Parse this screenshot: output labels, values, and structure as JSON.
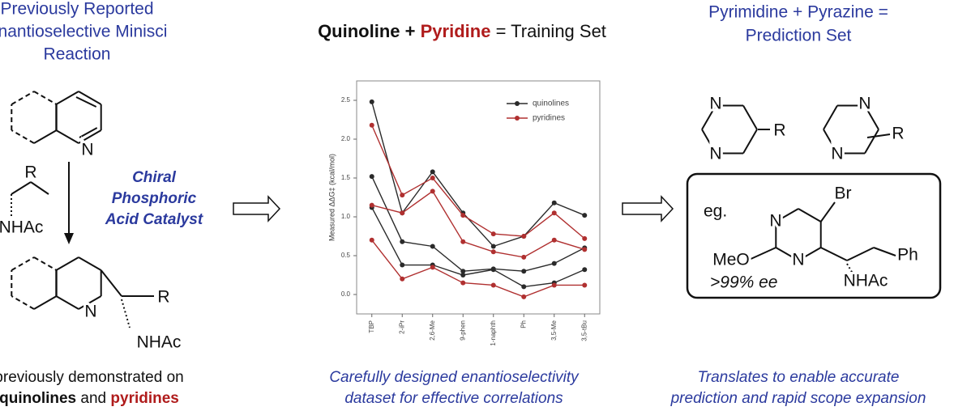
{
  "left": {
    "title": [
      "Previously Reported",
      "Enantioselective Minisci",
      "Reaction"
    ],
    "catalyst": [
      "Chiral",
      "Phosphoric",
      "Acid Catalyst"
    ],
    "atoms": {
      "quinoline_n": "N",
      "reagent_r": "R",
      "reagent_nhac": "NHAc",
      "product_n": "N",
      "product_r": "R",
      "product_nhac": "NHAc"
    },
    "footer": {
      "line1": "previously demonstrated on",
      "quinolines": "quinolines",
      "and": "and",
      "pyridines": "pyridines"
    }
  },
  "middle": {
    "title": {
      "quinoline": "Quinoline",
      "plus": "+",
      "pyridine": "Pyridine",
      "rest": "= Training Set"
    },
    "caption": [
      "Carefully designed enantioselectivity",
      "dataset for effective correlations"
    ],
    "chart": {
      "type": "line",
      "y_label": "Measured ΔΔG‡ (kcal/mol)",
      "categories": [
        "TBP",
        "2-iPr",
        "2,6-Me",
        "9-phen",
        "1-naphth",
        "Ph",
        "3,5-Me",
        "3,5-tBu"
      ],
      "ylim": [
        -0.25,
        2.75
      ],
      "yticks": [
        {
          "value": 0,
          "label": "0.0"
        },
        0.5,
        {
          "value": 1,
          "label": "1.0"
        },
        1.5,
        {
          "value": 2,
          "label": "2.0"
        },
        2.5
      ],
      "legend": "upper right",
      "series": [
        {
          "name": "quinolines",
          "color": "#2a2a2a",
          "lines": [
            [
              2.48,
              1.05,
              1.58,
              1.05,
              0.62,
              0.75,
              1.18,
              1.02
            ],
            [
              1.52,
              0.68,
              0.62,
              0.3,
              0.33,
              0.3,
              0.4,
              0.6
            ],
            [
              1.12,
              0.38,
              0.38,
              0.25,
              0.32,
              0.1,
              0.15,
              0.32
            ]
          ]
        },
        {
          "name": "pyridines",
          "color": "#b03030",
          "lines": [
            [
              2.18,
              1.28,
              1.5,
              1.02,
              0.78,
              0.75,
              1.05,
              0.72
            ],
            [
              1.15,
              1.05,
              1.33,
              0.68,
              0.55,
              0.48,
              0.7,
              0.58
            ],
            [
              0.7,
              0.2,
              0.35,
              0.15,
              0.12,
              -0.03,
              0.12,
              0.12
            ]
          ]
        }
      ]
    }
  },
  "right": {
    "title": [
      "Pyrimidine + Pyrazine =",
      "Prediction Set"
    ],
    "atoms": {
      "pym_n1": "N",
      "pym_n2": "N",
      "pym_r": "R",
      "pyz_n1": "N",
      "pyz_n2": "N",
      "pyz_r": "R",
      "ex_n1": "N",
      "ex_n2": "N",
      "ex_br": "Br",
      "ex_meo": "MeO",
      "ex_ph": "Ph",
      "ex_nhac": "NHAc"
    },
    "eg": "eg.",
    "ee": ">99% ee",
    "caption": [
      "Translates to enable accurate",
      "prediction and rapid scope expansion"
    ]
  }
}
